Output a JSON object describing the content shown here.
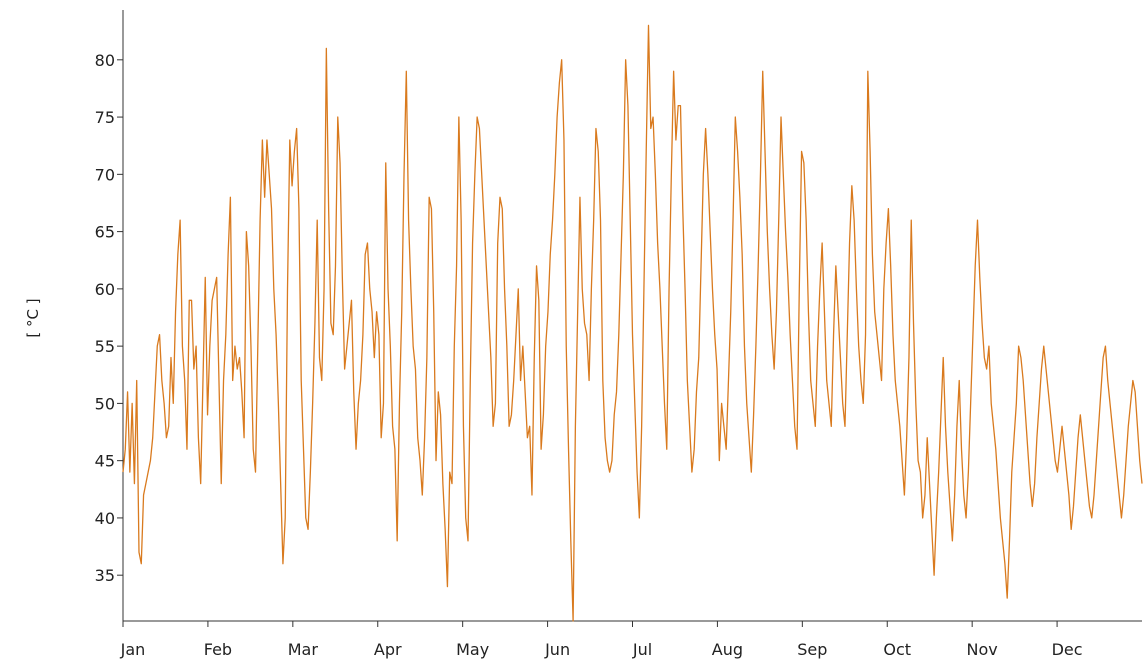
{
  "chart_data": {
    "type": "line",
    "title": "",
    "xlabel": "",
    "ylabel": "[ °C ]",
    "ylim": [
      31,
      84
    ],
    "yticks": [
      35,
      40,
      45,
      50,
      55,
      60,
      65,
      70,
      75,
      80
    ],
    "xticks": [
      "Jan",
      "Feb",
      "Mar",
      "Apr",
      "May",
      "Jun",
      "Jul",
      "Aug",
      "Sep",
      "Oct",
      "Nov",
      "Dec"
    ],
    "grid": false,
    "legend": "none",
    "colors": {
      "line": "#d97a1e",
      "axis": "#333333"
    },
    "series": [
      {
        "values": [
          44,
          46,
          51,
          44,
          50,
          43,
          52,
          37,
          36,
          42,
          43,
          44,
          45,
          47,
          51,
          55,
          56,
          52,
          50,
          47,
          48,
          54,
          50,
          58,
          63,
          66,
          55,
          52,
          46,
          59,
          59,
          53,
          55,
          47,
          43,
          52,
          61,
          49,
          55,
          59,
          60,
          61,
          52,
          43,
          52,
          56,
          63,
          68,
          52,
          55,
          53,
          54,
          51,
          47,
          65,
          62,
          55,
          46,
          44,
          55,
          66,
          73,
          68,
          73,
          70,
          67,
          60,
          56,
          50,
          43,
          36,
          40,
          60,
          73,
          69,
          72,
          74,
          67,
          52,
          46,
          40,
          39,
          44,
          50,
          57,
          66,
          54,
          52,
          60,
          81,
          67,
          57,
          56,
          62,
          75,
          71,
          61,
          53,
          55,
          57,
          59,
          51,
          46,
          50,
          52,
          56,
          63,
          64,
          60,
          58,
          54,
          58,
          56,
          47,
          50,
          71,
          60,
          55,
          48,
          46,
          38,
          50,
          58,
          70,
          79,
          66,
          60,
          55,
          53,
          47,
          45,
          42,
          47,
          54,
          68,
          67,
          58,
          45,
          51,
          49,
          43,
          39,
          34,
          44,
          43,
          55,
          62,
          75,
          66,
          48,
          40,
          38,
          52,
          64,
          70,
          75,
          74,
          70,
          66,
          62,
          58,
          54,
          48,
          50,
          64,
          68,
          67,
          60,
          55,
          48,
          49,
          52,
          56,
          60,
          52,
          55,
          51,
          47,
          48,
          42,
          54,
          62,
          59,
          46,
          49,
          55,
          58,
          63,
          66,
          70,
          75,
          78,
          80,
          73,
          55,
          46,
          38,
          31,
          48,
          58,
          68,
          60,
          57,
          56,
          52,
          60,
          66,
          74,
          72,
          66,
          52,
          47,
          45,
          44,
          45,
          49,
          51,
          56,
          63,
          70,
          80,
          76,
          66,
          56,
          50,
          44,
          40,
          48,
          60,
          72,
          83,
          74,
          75,
          70,
          64,
          60,
          55,
          50,
          46,
          60,
          70,
          79,
          73,
          76,
          76,
          67,
          60,
          52,
          48,
          44,
          46,
          51,
          54,
          62,
          70,
          74,
          70,
          65,
          60,
          56,
          53,
          45,
          50,
          48,
          46,
          52,
          58,
          66,
          75,
          72,
          68,
          63,
          55,
          50,
          47,
          44,
          49,
          55,
          62,
          70,
          79,
          72,
          65,
          60,
          56,
          53,
          58,
          66,
          75,
          70,
          65,
          61,
          56,
          52,
          48,
          46,
          60,
          72,
          71,
          66,
          58,
          52,
          50,
          48,
          55,
          60,
          64,
          58,
          52,
          50,
          48,
          56,
          62,
          58,
          54,
          50,
          48,
          56,
          64,
          69,
          66,
          60,
          55,
          52,
          50,
          56,
          79,
          72,
          63,
          58,
          56,
          54,
          52,
          60,
          64,
          67,
          62,
          56,
          52,
          50,
          48,
          45,
          42,
          47,
          54,
          66,
          57,
          50,
          45,
          44,
          40,
          42,
          47,
          43,
          39,
          35,
          40,
          44,
          49,
          54,
          48,
          44,
          41,
          38,
          42,
          48,
          52,
          46,
          42,
          40,
          44,
          50,
          56,
          62,
          66,
          61,
          57,
          54,
          53,
          55,
          50,
          48,
          46,
          43,
          40,
          38,
          36,
          33,
          38,
          44,
          47,
          50,
          55,
          54,
          52,
          49,
          46,
          43,
          41,
          43,
          47,
          50,
          53,
          55,
          53,
          51,
          49,
          47,
          45,
          44,
          46,
          48,
          46,
          44,
          42,
          39,
          41,
          44,
          47,
          49,
          47,
          45,
          43,
          41,
          40,
          42,
          45,
          48,
          51,
          54,
          55,
          52,
          50,
          48,
          46,
          44,
          42,
          40,
          42,
          45,
          48,
          50,
          52,
          51,
          48,
          45,
          43
        ]
      }
    ]
  }
}
